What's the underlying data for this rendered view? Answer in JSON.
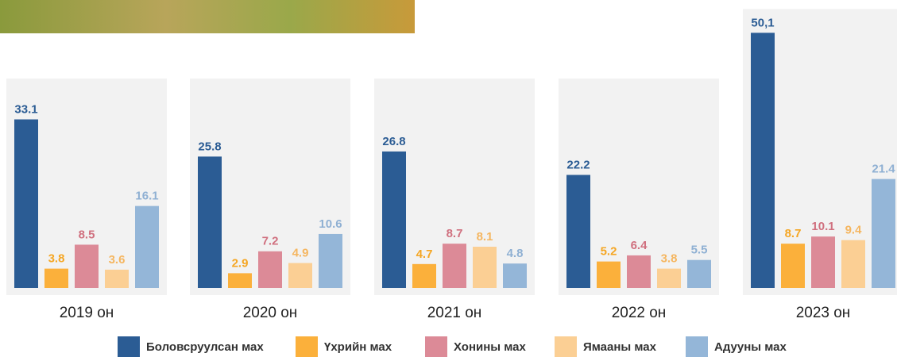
{
  "chart_data": {
    "type": "bar",
    "categories": [
      "2019 он",
      "2020 он",
      "2021 он",
      "2022 он",
      "2023 он"
    ],
    "series": [
      {
        "name": "Боловсруулсан мах",
        "color": "#2b5c94",
        "values": [
          33.1,
          25.8,
          26.8,
          22.2,
          50.1
        ],
        "value_labels": [
          "33.1",
          "25.8",
          "26.8",
          "22.2",
          "50,1"
        ]
      },
      {
        "name": "Үхрийн мах",
        "color": "#fbb03b",
        "values": [
          3.8,
          2.9,
          4.7,
          5.2,
          8.7
        ]
      },
      {
        "name": "Хонины мах",
        "color": "#dc8a97",
        "values": [
          8.5,
          7.2,
          8.7,
          6.4,
          10.1
        ]
      },
      {
        "name": "Ямааны мах",
        "color": "#fbcf94",
        "values": [
          3.6,
          4.9,
          8.1,
          3.8,
          9.4
        ]
      },
      {
        "name": "Адууны мах",
        "color": "#94b6d8",
        "values": [
          16.1,
          10.6,
          4.8,
          5.5,
          21.4
        ]
      }
    ]
  }
}
